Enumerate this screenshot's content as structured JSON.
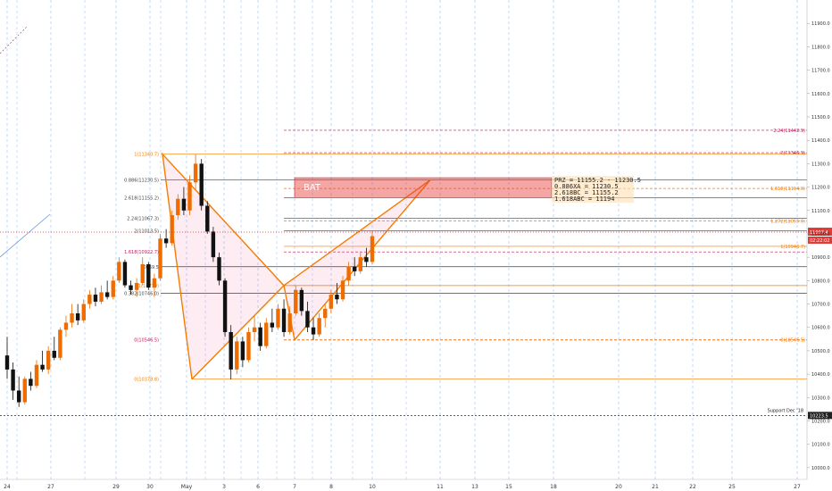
{
  "chart_data": {
    "type": "candlestick",
    "title": "",
    "ylim": [
      9950,
      12000
    ],
    "y_ticks": [
      "11900.0",
      "11800.0",
      "11700.0",
      "11600.0",
      "11500.0",
      "11400.0",
      "11300.0",
      "11200.0",
      "11100.0",
      "11000.0",
      "10900.0",
      "10800.0",
      "10700.0",
      "10600.0",
      "10500.0",
      "10400.0",
      "10300.0",
      "10200.0",
      "10100.0",
      "10000.0"
    ],
    "x_ticks": [
      "24",
      "27",
      "29",
      "30",
      "May",
      "3",
      "6",
      "7",
      "8",
      "10",
      "11",
      "13",
      "15",
      "18",
      "20",
      "21",
      "22",
      "25",
      "27"
    ],
    "pattern_label": "BAT",
    "prz_text": [
      "PRZ = 11155.2 - 11230.5",
      "0.886XA = 11230.5",
      "2.618BC = 11155.2",
      "1.618ABC = 11194"
    ],
    "price_current": "11007.4",
    "countdown": "02:22:02",
    "support_price": "10223.5",
    "support_label": "Support Dec '18",
    "h_levels": [
      {
        "label": "2.24(11442.9)",
        "value": 11442.9,
        "color": "#c2185b",
        "style": "dashed",
        "side": "right"
      },
      {
        "label": "2(11346.9)",
        "value": 11346.9,
        "color": "#c2185b",
        "style": "dashed",
        "side": "right"
      },
      {
        "label": "1(11340.7)",
        "value": 11340.7,
        "color": "#f57c00",
        "style": "solid",
        "side": "left"
      },
      {
        "label": "0.886(11230.5)",
        "value": 11230.5,
        "color": "#424242",
        "style": "solid",
        "side": "left"
      },
      {
        "label": "1.618(11194.0)",
        "value": 11194.0,
        "color": "#f57c00",
        "style": "dashed",
        "side": "right"
      },
      {
        "label": "2.618(11155.2)",
        "value": 11155.2,
        "color": "#424242",
        "style": "solid",
        "side": "left"
      },
      {
        "label": "2.24(11067.3)",
        "value": 11067.3,
        "color": "#424242",
        "style": "solid",
        "side": "left"
      },
      {
        "label": "1.272(11055.6)",
        "value": 11055.6,
        "color": "#f57c00",
        "style": "dashed",
        "side": "right"
      },
      {
        "label": "2(11013.5)",
        "value": 11013.5,
        "color": "#424242",
        "style": "solid",
        "side": "left"
      },
      {
        "label": "1.618(10922.7)",
        "value": 10922.7,
        "color": "#c2185b",
        "style": "dashed",
        "side": "left"
      },
      {
        "label": "1(10946.7)",
        "value": 10946.7,
        "color": "#f57c00",
        "style": "solid",
        "side": "right"
      },
      {
        "label": "10859.5",
        "value": 10859.5,
        "color": "#424242",
        "style": "solid",
        "side": "left"
      },
      {
        "label": "1(10779)",
        "value": 10779.0,
        "color": "#f57c00",
        "style": "solid",
        "side": "left"
      },
      {
        "label": "0.382(10746.0)",
        "value": 10746.0,
        "color": "#424242",
        "style": "solid",
        "side": "left"
      },
      {
        "label": "0(10546.5)",
        "value": 10546.5,
        "color": "#c2185b",
        "style": "dashed",
        "side": "left"
      },
      {
        "label": "0(10546.5)",
        "value": 10546.5,
        "color": "#f57c00",
        "style": "dashed",
        "side": "right"
      },
      {
        "label": "0(10378.8)",
        "value": 10378.8,
        "color": "#f57c00",
        "style": "solid",
        "side": "left"
      }
    ],
    "xabcd": {
      "X": 10378.8,
      "A": 11340.7,
      "B": 10779.0,
      "C": 10546.5,
      "D": 11230.5
    },
    "candles": [
      [
        10480,
        10560,
        10380,
        10420
      ],
      [
        10420,
        10450,
        10290,
        10330
      ],
      [
        10330,
        10390,
        10260,
        10280
      ],
      [
        10280,
        10390,
        10270,
        10380
      ],
      [
        10380,
        10410,
        10330,
        10350
      ],
      [
        10350,
        10460,
        10340,
        10440
      ],
      [
        10440,
        10500,
        10410,
        10420
      ],
      [
        10420,
        10520,
        10400,
        10500
      ],
      [
        10500,
        10560,
        10460,
        10470
      ],
      [
        10470,
        10600,
        10460,
        10590
      ],
      [
        10590,
        10650,
        10560,
        10620
      ],
      [
        10620,
        10700,
        10600,
        10660
      ],
      [
        10660,
        10700,
        10610,
        10630
      ],
      [
        10630,
        10720,
        10620,
        10700
      ],
      [
        10700,
        10760,
        10680,
        10740
      ],
      [
        10740,
        10770,
        10690,
        10710
      ],
      [
        10710,
        10780,
        10700,
        10750
      ],
      [
        10750,
        10800,
        10720,
        10730
      ],
      [
        10730,
        10820,
        10720,
        10800
      ],
      [
        10800,
        10900,
        10790,
        10880
      ],
      [
        10880,
        10890,
        10770,
        10780
      ],
      [
        10780,
        10800,
        10740,
        10760
      ],
      [
        10760,
        10810,
        10730,
        10790
      ],
      [
        10790,
        10900,
        10780,
        10870
      ],
      [
        10870,
        10880,
        10760,
        10770
      ],
      [
        10770,
        10830,
        10730,
        10810
      ],
      [
        10810,
        11000,
        10800,
        10980
      ],
      [
        10980,
        11020,
        10940,
        10960
      ],
      [
        10960,
        11100,
        10950,
        11080
      ],
      [
        11080,
        11170,
        11060,
        11150
      ],
      [
        11150,
        11200,
        11080,
        11100
      ],
      [
        11100,
        11250,
        11080,
        11220
      ],
      [
        11220,
        11340,
        11190,
        11300
      ],
      [
        11300,
        11320,
        11100,
        11120
      ],
      [
        11120,
        11140,
        11000,
        11010
      ],
      [
        11010,
        11030,
        10880,
        10900
      ],
      [
        10900,
        10920,
        10780,
        10800
      ],
      [
        10800,
        10810,
        10560,
        10580
      ],
      [
        10580,
        10610,
        10378,
        10420
      ],
      [
        10420,
        10560,
        10400,
        10540
      ],
      [
        10540,
        10560,
        10430,
        10460
      ],
      [
        10460,
        10600,
        10450,
        10580
      ],
      [
        10580,
        10650,
        10540,
        10600
      ],
      [
        10600,
        10620,
        10500,
        10520
      ],
      [
        10520,
        10640,
        10510,
        10620
      ],
      [
        10620,
        10680,
        10580,
        10600
      ],
      [
        10600,
        10700,
        10590,
        10680
      ],
      [
        10680,
        10720,
        10560,
        10580
      ],
      [
        10580,
        10690,
        10570,
        10660
      ],
      [
        10660,
        10780,
        10650,
        10760
      ],
      [
        10760,
        10770,
        10650,
        10670
      ],
      [
        10670,
        10710,
        10580,
        10600
      ],
      [
        10600,
        10640,
        10546,
        10570
      ],
      [
        10570,
        10660,
        10560,
        10640
      ],
      [
        10640,
        10700,
        10600,
        10680
      ],
      [
        10680,
        10760,
        10660,
        10740
      ],
      [
        10740,
        10790,
        10700,
        10720
      ],
      [
        10720,
        10820,
        10710,
        10800
      ],
      [
        10800,
        10880,
        10780,
        10860
      ],
      [
        10860,
        10900,
        10820,
        10840
      ],
      [
        10840,
        10920,
        10830,
        10900
      ],
      [
        10900,
        10940,
        10860,
        10880
      ],
      [
        10880,
        11010,
        10870,
        10990
      ]
    ]
  }
}
